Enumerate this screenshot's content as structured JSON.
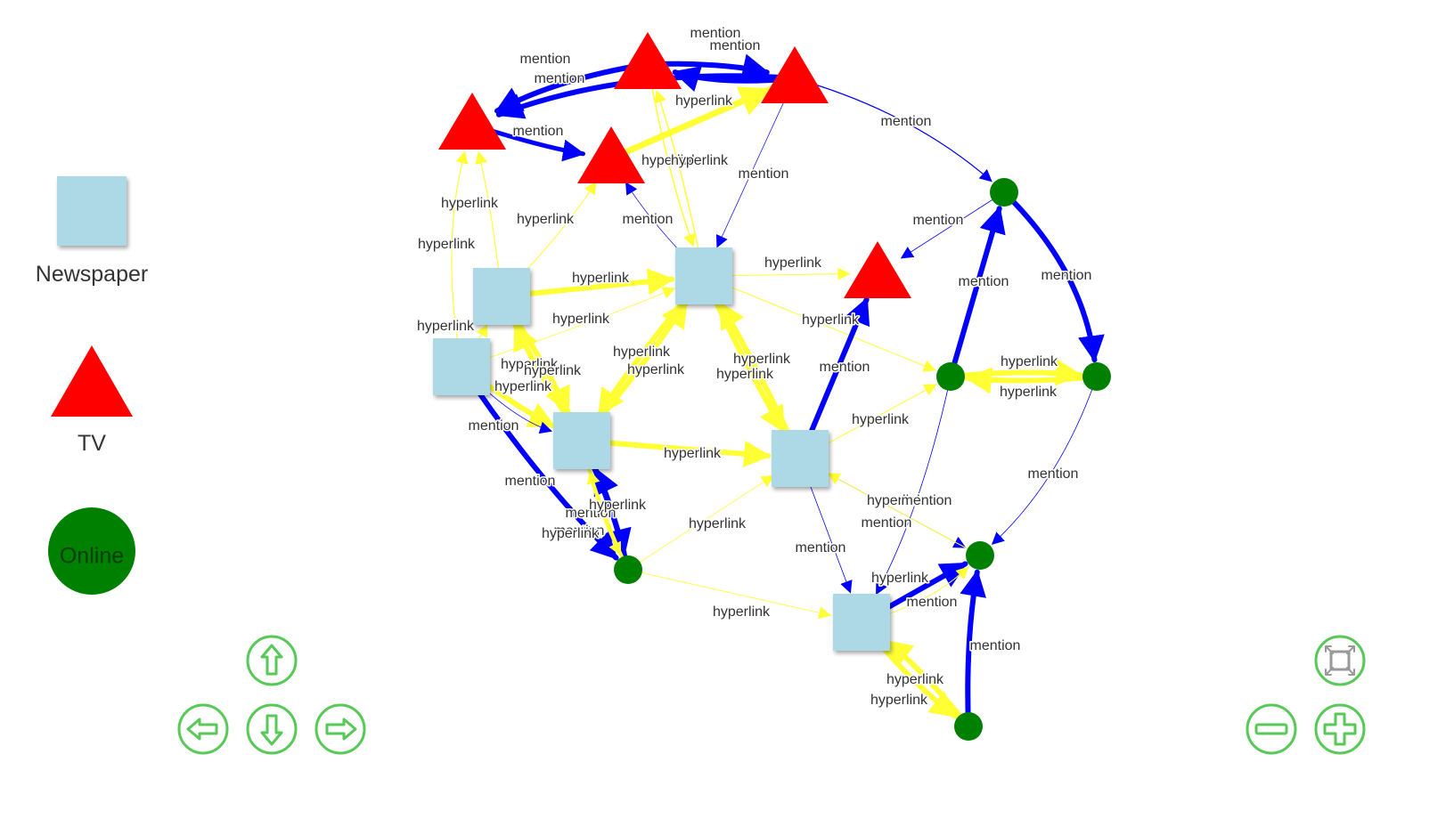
{
  "legend": [
    {
      "label": "Newspaper",
      "shape": "square",
      "color": "#add8e6"
    },
    {
      "label": "TV",
      "shape": "triangle",
      "color": "#ff0000"
    },
    {
      "label": "Online",
      "shape": "circle",
      "color": "#008000"
    }
  ],
  "edge_types": {
    "mention": {
      "color": "#0000ff"
    },
    "hyperlink": {
      "color": "#ffff33"
    }
  },
  "nodes": [
    {
      "id": "tv1",
      "type": "TV"
    },
    {
      "id": "tv2",
      "type": "TV"
    },
    {
      "id": "tv3",
      "type": "TV"
    },
    {
      "id": "tv4",
      "type": "TV"
    },
    {
      "id": "tv5",
      "type": "TV"
    },
    {
      "id": "np1",
      "type": "Newspaper"
    },
    {
      "id": "np2",
      "type": "Newspaper"
    },
    {
      "id": "np3",
      "type": "Newspaper"
    },
    {
      "id": "np4",
      "type": "Newspaper"
    },
    {
      "id": "np5",
      "type": "Newspaper"
    },
    {
      "id": "np6",
      "type": "Newspaper"
    },
    {
      "id": "on1",
      "type": "Online"
    },
    {
      "id": "on2",
      "type": "Online"
    },
    {
      "id": "on3",
      "type": "Online"
    },
    {
      "id": "on4",
      "type": "Online"
    },
    {
      "id": "on5",
      "type": "Online"
    },
    {
      "id": "on6",
      "type": "Online"
    }
  ],
  "edges": [
    {
      "from": "tv3",
      "to": "tv1",
      "label": "mention"
    },
    {
      "from": "tv2",
      "to": "tv1",
      "label": "mention"
    },
    {
      "from": "tv2",
      "to": "tv3",
      "label": "mention"
    },
    {
      "from": "tv3",
      "to": "tv2",
      "label": "mention"
    },
    {
      "from": "tv1",
      "to": "tv4",
      "label": "mention"
    },
    {
      "from": "tv4",
      "to": "tv3",
      "label": "hyperlink"
    },
    {
      "from": "tv3",
      "to": "on1",
      "label": "mention"
    },
    {
      "from": "tv3",
      "to": "np2",
      "label": "mention"
    },
    {
      "from": "np2",
      "to": "tv4",
      "label": "mention"
    },
    {
      "from": "np2",
      "to": "tv2",
      "label": "hyperlink"
    },
    {
      "from": "tv2",
      "to": "np2",
      "label": "hyperlink"
    },
    {
      "from": "np1",
      "to": "tv1",
      "label": "hyperlink"
    },
    {
      "from": "np3",
      "to": "tv1",
      "label": "hyperlink"
    },
    {
      "from": "np1",
      "to": "tv4",
      "label": "hyperlink"
    },
    {
      "from": "np1",
      "to": "np2",
      "label": "hyperlink"
    },
    {
      "from": "np3",
      "to": "np2",
      "label": "hyperlink"
    },
    {
      "from": "np2",
      "to": "tv5",
      "label": "hyperlink"
    },
    {
      "from": "np2",
      "to": "on2",
      "label": "hyperlink"
    },
    {
      "from": "on1",
      "to": "tv5",
      "label": "mention"
    },
    {
      "from": "on2",
      "to": "on1",
      "label": "mention"
    },
    {
      "from": "on1",
      "to": "on3",
      "label": "mention"
    },
    {
      "from": "on2",
      "to": "on3",
      "label": "hyperlink"
    },
    {
      "from": "on3",
      "to": "on2",
      "label": "hyperlink"
    },
    {
      "from": "on3",
      "to": "on4",
      "label": "mention"
    },
    {
      "from": "np3",
      "to": "np1",
      "label": "hyperlink"
    },
    {
      "from": "np1",
      "to": "np4",
      "label": "hyperlink"
    },
    {
      "from": "np4",
      "to": "np1",
      "label": "hyperlink"
    },
    {
      "from": "np3",
      "to": "np4",
      "label": "hyperlink"
    },
    {
      "from": "np3",
      "to": "np4",
      "label": "mention"
    },
    {
      "from": "np2",
      "to": "np4",
      "label": "hyperlink"
    },
    {
      "from": "np4",
      "to": "np2",
      "label": "hyperlink"
    },
    {
      "from": "np2",
      "to": "np5",
      "label": "hyperlink"
    },
    {
      "from": "np5",
      "to": "np2",
      "label": "hyperlink"
    },
    {
      "from": "np4",
      "to": "np5",
      "label": "hyperlink"
    },
    {
      "from": "np5",
      "to": "tv5",
      "label": "mention"
    },
    {
      "from": "np5",
      "to": "on2",
      "label": "hyperlink"
    },
    {
      "from": "np3",
      "to": "on5",
      "label": "mention"
    },
    {
      "from": "np4",
      "to": "on5",
      "label": "mention"
    },
    {
      "from": "on5",
      "to": "np4",
      "label": "mention"
    },
    {
      "from": "on5",
      "to": "np4",
      "label": "hyperlink"
    },
    {
      "from": "np4",
      "to": "on5",
      "label": "hyperlink"
    },
    {
      "from": "on5",
      "to": "np5",
      "label": "hyperlink"
    },
    {
      "from": "on5",
      "to": "np6",
      "label": "hyperlink"
    },
    {
      "from": "np5",
      "to": "on4",
      "label": "mention"
    },
    {
      "from": "on4",
      "to": "np5",
      "label": "hyperlink"
    },
    {
      "from": "np5",
      "to": "np6",
      "label": "mention"
    },
    {
      "from": "on2",
      "to": "np6",
      "label": "mention"
    },
    {
      "from": "np6",
      "to": "on4",
      "label": "mention"
    },
    {
      "from": "np6",
      "to": "on4",
      "label": "hyperlink"
    },
    {
      "from": "np6",
      "to": "on6",
      "label": "hyperlink"
    },
    {
      "from": "on6",
      "to": "np6",
      "label": "hyperlink"
    },
    {
      "from": "on6",
      "to": "on4",
      "label": "mention"
    }
  ],
  "navigation": {
    "up": "arrow-up-icon",
    "down": "arrow-down-icon",
    "left": "arrow-left-icon",
    "right": "arrow-right-icon",
    "fit": "zoom-extends-icon",
    "zoom_out": "zoom-out-icon",
    "zoom_in": "zoom-in-icon"
  }
}
